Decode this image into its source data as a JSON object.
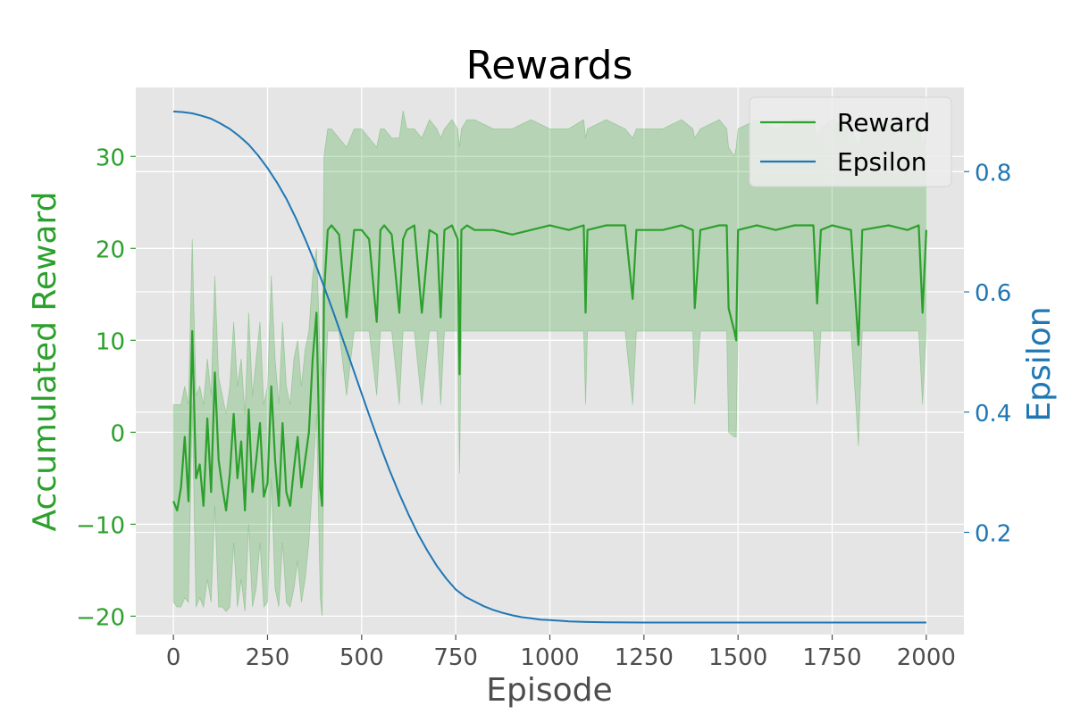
{
  "chart_data": {
    "type": "line",
    "title": "Rewards",
    "xlabel": "Episode",
    "ylabel": "Accumulated Reward",
    "y2label": "Epsilon",
    "xlim": [
      -100,
      2100
    ],
    "ylim": [
      -22,
      37.5
    ],
    "y2lim": [
      0.03,
      0.94
    ],
    "xticks": [
      0,
      250,
      500,
      750,
      1000,
      1250,
      1500,
      1750,
      2000
    ],
    "xtick_labels": [
      "0",
      "250",
      "500",
      "750",
      "1000",
      "1250",
      "1500",
      "1750",
      "2000"
    ],
    "yticks": [
      -20,
      -10,
      0,
      10,
      20,
      30
    ],
    "ytick_labels": [
      "−20",
      "−10",
      "0",
      "10",
      "20",
      "30"
    ],
    "y2ticks": [
      0.2,
      0.4,
      0.6,
      0.8
    ],
    "y2tick_labels": [
      "0.2",
      "0.4",
      "0.6",
      "0.8"
    ],
    "grid": true,
    "legend_position": "top-right",
    "background": "#e5e5e5",
    "series": [
      {
        "name": "Reward",
        "axis": "left",
        "color": "#2ca02c",
        "band_color": "#2ca02c",
        "x": [
          0,
          10,
          20,
          30,
          40,
          50,
          60,
          70,
          80,
          90,
          100,
          110,
          120,
          130,
          140,
          150,
          160,
          170,
          180,
          190,
          200,
          210,
          220,
          230,
          240,
          250,
          260,
          270,
          280,
          290,
          300,
          310,
          320,
          330,
          340,
          350,
          360,
          370,
          380,
          390,
          395,
          400,
          410,
          420,
          440,
          460,
          480,
          500,
          520,
          540,
          550,
          560,
          580,
          600,
          610,
          620,
          640,
          660,
          680,
          700,
          710,
          720,
          740,
          755,
          760,
          765,
          780,
          800,
          850,
          900,
          950,
          1000,
          1050,
          1090,
          1095,
          1100,
          1150,
          1200,
          1220,
          1230,
          1300,
          1350,
          1380,
          1385,
          1400,
          1450,
          1470,
          1475,
          1490,
          1495,
          1500,
          1550,
          1600,
          1650,
          1700,
          1710,
          1720,
          1750,
          1800,
          1820,
          1830,
          1900,
          1950,
          1980,
          1990,
          2000
        ],
        "mean": [
          -7.5,
          -8.5,
          -6,
          -0.5,
          -7.5,
          11,
          -5,
          -3.5,
          -8,
          1.5,
          -6.5,
          6.5,
          -3,
          -6,
          -8.5,
          -4.5,
          2,
          -5,
          -1,
          -8.5,
          2.5,
          -6.5,
          -3,
          1,
          -7,
          -5.5,
          5,
          -3,
          -8,
          1,
          -6.5,
          -8,
          -4,
          -0.5,
          -6,
          -3,
          0,
          8,
          13,
          -6,
          -8,
          15,
          22,
          22.5,
          21.5,
          12.5,
          22,
          22,
          21,
          12,
          22,
          22.5,
          21.5,
          13,
          21,
          22,
          22.5,
          13,
          22,
          21.5,
          12.5,
          22,
          22.5,
          21,
          6.3,
          22,
          22.5,
          22,
          22,
          21.5,
          22,
          22.5,
          22,
          22.5,
          13,
          22,
          22.5,
          22.5,
          14.5,
          22,
          22,
          22.5,
          22,
          13.5,
          22,
          22.5,
          22.5,
          13.5,
          11,
          10,
          22,
          22.5,
          22,
          22.5,
          22.5,
          14,
          22,
          22.5,
          22,
          9.5,
          22,
          22.5,
          22,
          22.5,
          13,
          22
        ],
        "upper": [
          3,
          3,
          3,
          5,
          3,
          21,
          4,
          5,
          3,
          8,
          4,
          17,
          6,
          4,
          2,
          5,
          12,
          5,
          8,
          2,
          13,
          4,
          8,
          12,
          3,
          5,
          17,
          8,
          3,
          12,
          5,
          3,
          8,
          10,
          5,
          9,
          11,
          17,
          20,
          8,
          6,
          30,
          33,
          33,
          32,
          31,
          33,
          33,
          32,
          31,
          33,
          33,
          32,
          32,
          35,
          33,
          33,
          32,
          34,
          33,
          32,
          33,
          34,
          33,
          31,
          33,
          34,
          34,
          33,
          33,
          34,
          33,
          33,
          34,
          32,
          33,
          34,
          33,
          32,
          33,
          33,
          34,
          33,
          32,
          33,
          34,
          33,
          31,
          30,
          31,
          33,
          34,
          33,
          34,
          34,
          32,
          33,
          34,
          33,
          31,
          33,
          34,
          33,
          34,
          31,
          33
        ],
        "lower": [
          -18.5,
          -19,
          -19,
          -18,
          -18.5,
          3,
          -19,
          -18,
          -19,
          -16,
          -18.5,
          -8,
          -19,
          -19,
          -19.5,
          -19,
          -12,
          -19,
          -16,
          -19.5,
          -10,
          -19,
          -17,
          -12,
          -19,
          -18.5,
          -5,
          -17,
          -19,
          -12,
          -18.5,
          -19,
          -17,
          -14,
          -18.5,
          -16,
          -12,
          -5,
          2,
          -18,
          -20,
          1,
          11,
          11,
          11,
          4,
          11,
          11,
          11,
          4,
          11,
          11,
          11,
          3,
          11,
          11,
          11,
          3,
          11,
          11,
          3,
          11,
          11,
          11,
          -4.5,
          11,
          11,
          11,
          11,
          11,
          11,
          11,
          11,
          11,
          3,
          11,
          11,
          11,
          3,
          11,
          11,
          11,
          11,
          3,
          11,
          11,
          11,
          0,
          -0.5,
          -0.5,
          11,
          11,
          11,
          11,
          11,
          3,
          11,
          11,
          11,
          -1.5,
          11,
          11,
          11,
          11,
          3,
          11
        ]
      },
      {
        "name": "Epsilon",
        "axis": "right",
        "color": "#1f77b4",
        "x": [
          0,
          25,
          50,
          75,
          100,
          125,
          150,
          175,
          200,
          225,
          250,
          275,
          300,
          325,
          350,
          375,
          400,
          425,
          450,
          475,
          500,
          525,
          550,
          575,
          600,
          625,
          650,
          675,
          700,
          725,
          750,
          775,
          800,
          825,
          850,
          875,
          900,
          925,
          950,
          975,
          1000,
          1050,
          1100,
          1150,
          1200,
          1250,
          1300,
          1350,
          1400,
          1500,
          1600,
          1700,
          1800,
          1900,
          2000
        ],
        "values": [
          0.9,
          0.899,
          0.897,
          0.893,
          0.888,
          0.88,
          0.871,
          0.859,
          0.845,
          0.827,
          0.806,
          0.782,
          0.755,
          0.723,
          0.688,
          0.65,
          0.609,
          0.566,
          0.521,
          0.476,
          0.431,
          0.386,
          0.343,
          0.302,
          0.264,
          0.229,
          0.197,
          0.169,
          0.144,
          0.123,
          0.105,
          0.093,
          0.085,
          0.077,
          0.071,
          0.066,
          0.062,
          0.059,
          0.057,
          0.055,
          0.054,
          0.052,
          0.051,
          0.0505,
          0.0502,
          0.0501,
          0.05,
          0.05,
          0.05,
          0.05,
          0.05,
          0.05,
          0.05,
          0.05,
          0.05
        ]
      }
    ]
  }
}
